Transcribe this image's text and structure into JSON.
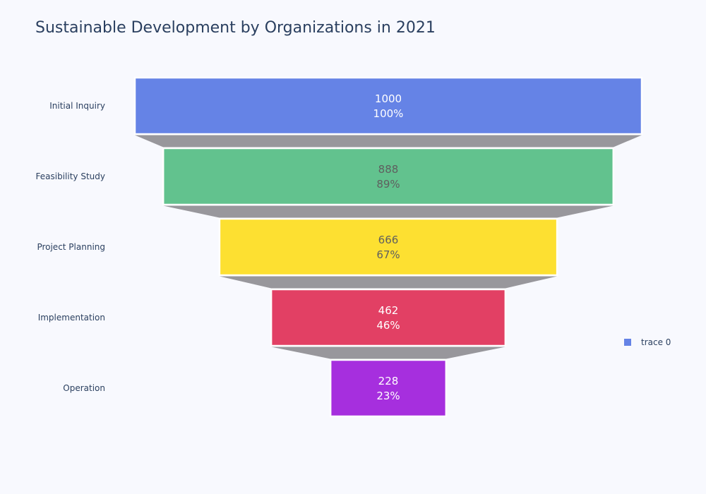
{
  "title": "Sustainable Development by Organizations in 2021",
  "legend": {
    "label": "trace 0",
    "color": "#6583e6"
  },
  "chart_data": {
    "type": "funnel",
    "title": "Sustainable Development by Organizations in 2021",
    "categories": [
      "Initial Inquiry",
      "Feasibility Study",
      "Project Planning",
      "Implementation",
      "Operation"
    ],
    "values": [
      1000,
      888,
      666,
      462,
      228
    ],
    "percent_initial": [
      "100%",
      "89%",
      "67%",
      "46%",
      "23%"
    ],
    "series": [
      {
        "name": "trace 0",
        "values": [
          1000,
          888,
          666,
          462,
          228
        ]
      }
    ],
    "colors": [
      "#6583e6",
      "#62c28e",
      "#fde031",
      "#e24064",
      "#a62fde"
    ],
    "connector_color": "#98979c",
    "label_colors": [
      "#ffffff",
      "#5f5f5f",
      "#5f5f5f",
      "#ffffff",
      "#ffffff"
    ],
    "legend_position": "right"
  }
}
